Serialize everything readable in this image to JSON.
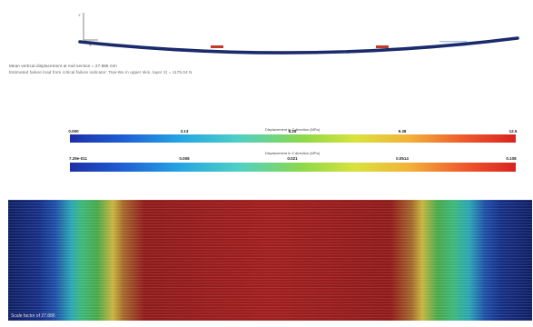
{
  "deflection": {
    "info_line_1": "Mean vertical displacement at mid section = 27.886 mm",
    "info_line_2": "Estimated failure load from critical failure indicator: Tsai-Wu in upper skin, layer 2) = 1175.04 N"
  },
  "legend_top": {
    "title": "Displacement in Z direction (MPa)",
    "ticks": [
      "0.000",
      "3.13",
      "6.25",
      "9.38",
      "12.5"
    ]
  },
  "legend_bottom": {
    "title": "Displacement in Z direction (MPa)",
    "ticks": [
      "7.29e-011",
      "0.008",
      "0.021",
      "0.0514",
      "0.108"
    ]
  },
  "colors": {
    "beam_outline": "#1b2a6b",
    "beam_highlight": "#c0392b",
    "field_hot": "#a01d1d",
    "field_cold": "#101f62"
  },
  "stress_field": {
    "caption": "Scale factor of 27.886"
  }
}
